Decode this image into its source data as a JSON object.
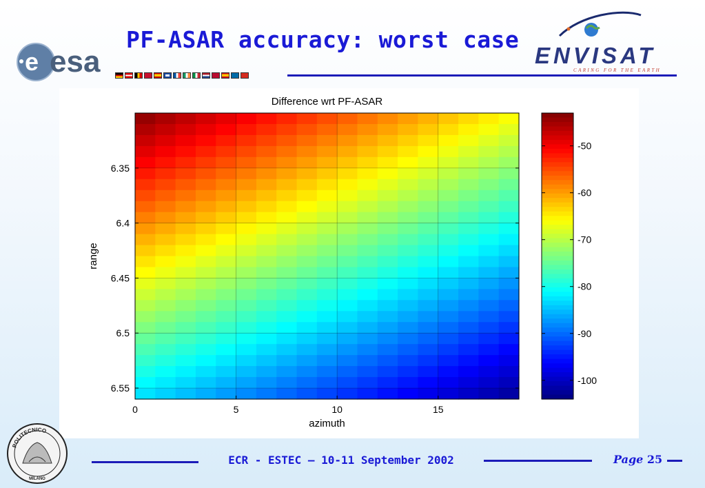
{
  "slide": {
    "title": "PF-ASAR accuracy: worst case",
    "esa_logo_text": "esa",
    "envisat_logo_text": "ENVISAT",
    "envisat_tagline": "CARING FOR THE EARTH",
    "footer": "ECR - ESTEC – 10-11 September  2002",
    "page_label": "Page",
    "page_number": "25",
    "seal_text_top": "POLITECNICO",
    "seal_text_bottom": "MILANO",
    "accent_color": "#1a1ad6"
  },
  "chart_data": {
    "type": "heatmap",
    "title": "Difference wrt PF-ASAR",
    "xlabel": "azimuth",
    "ylabel": "range",
    "colormap": "jet",
    "x_range": [
      0,
      19
    ],
    "y_range": [
      6.3,
      6.56
    ],
    "y_reversed": true,
    "grid": true,
    "xticks": [
      0,
      5,
      10,
      15
    ],
    "xtick_labels": [
      "0",
      "5",
      "10",
      "15"
    ],
    "yticks": [
      6.35,
      6.4,
      6.45,
      6.5,
      6.55
    ],
    "ytick_labels": [
      "6.35",
      "6.4",
      "6.45",
      "6.5",
      "6.55"
    ],
    "colorbar": {
      "range": [
        -104,
        -43
      ],
      "ticks": [
        -50,
        -60,
        -70,
        -80,
        -90,
        -100
      ],
      "tick_labels": [
        "-50",
        "-60",
        "-70",
        "-80",
        "-90",
        "-100"
      ]
    },
    "n_cols": 19,
    "n_rows": 26,
    "corner_values": {
      "top_left": -43,
      "top_right": -66,
      "bottom_left": -83,
      "bottom_right": -103
    }
  }
}
